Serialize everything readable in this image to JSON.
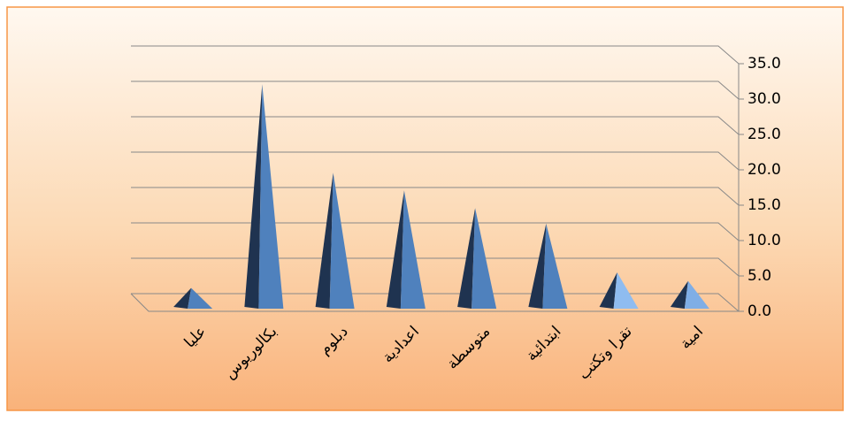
{
  "chart_data": {
    "type": "pyramid",
    "categories": [
      "عليا",
      "بكالوريوس",
      "دبلوم",
      "اعدادية",
      "متوسطة",
      "ابتدائية",
      "تقرا وتكتب",
      "امية"
    ],
    "values": [
      1.8,
      30.6,
      18.1,
      15.6,
      13.1,
      10.9,
      4.0,
      2.8
    ],
    "colors": [
      "#4f81bd",
      "#4f81bd",
      "#4f81bd",
      "#4f81bd",
      "#4f81bd",
      "#4f81bd",
      "#8fbcf0",
      "#7faee6"
    ],
    "ylim": [
      0,
      35
    ],
    "yticks": [
      {
        "value": 0,
        "label": "0.0"
      },
      {
        "value": 5,
        "label": "5.0"
      },
      {
        "value": 10,
        "label": "10.0"
      },
      {
        "value": 15,
        "label": "15.0"
      },
      {
        "value": 20,
        "label": "20.0"
      },
      {
        "value": 25,
        "label": "25.0"
      },
      {
        "value": 30,
        "label": "30.0"
      },
      {
        "value": 35,
        "label": "35.0"
      }
    ],
    "grid": true
  }
}
